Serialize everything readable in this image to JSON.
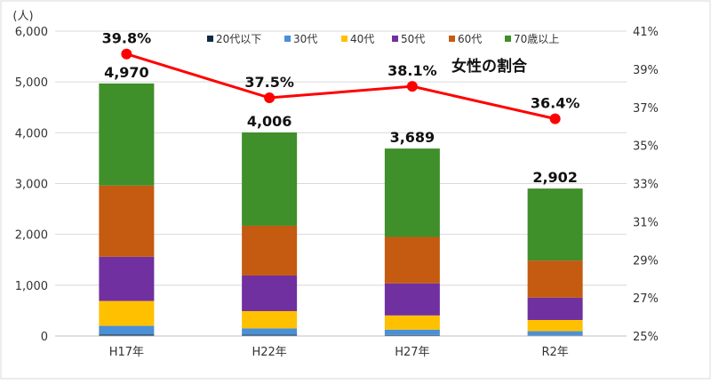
{
  "chart_data": {
    "type": "bar",
    "stacked": true,
    "categories": [
      "H17年",
      "H22年",
      "H27年",
      "R2年"
    ],
    "y_unit": "(人)",
    "ylim": [
      0,
      6000
    ],
    "yticks": [
      "0",
      "1,000",
      "2,000",
      "3,000",
      "4,000",
      "5,000",
      "6,000"
    ],
    "y2lim": [
      25,
      41
    ],
    "y2ticks": [
      "25%",
      "27%",
      "29%",
      "31%",
      "33%",
      "35%",
      "37%",
      "39%",
      "41%"
    ],
    "series": [
      {
        "name": "20代以下",
        "color": "#0f2a45",
        "values": [
          30,
          25,
          20,
          15
        ]
      },
      {
        "name": "30代",
        "color": "#4a90d9",
        "values": [
          170,
          125,
          105,
          80
        ]
      },
      {
        "name": "40代",
        "color": "#ffc000",
        "values": [
          490,
          340,
          280,
          220
        ]
      },
      {
        "name": "50代",
        "color": "#7030a0",
        "values": [
          870,
          700,
          630,
          440
        ]
      },
      {
        "name": "60代",
        "color": "#c55a11",
        "values": [
          1400,
          980,
          915,
          730
        ]
      },
      {
        "name": "70歳以上",
        "color": "#3f8f2a",
        "values": [
          2010,
          1836,
          1739,
          1417
        ]
      }
    ],
    "totals": [
      "4,970",
      "4,006",
      "3,689",
      "2,902"
    ],
    "line": {
      "name": "女性の割合",
      "color": "#ff0000",
      "values": [
        39.8,
        37.5,
        38.1,
        36.4
      ],
      "labels": [
        "39.8%",
        "37.5%",
        "38.1%",
        "36.4%"
      ]
    },
    "grid": true,
    "legend": "top"
  }
}
